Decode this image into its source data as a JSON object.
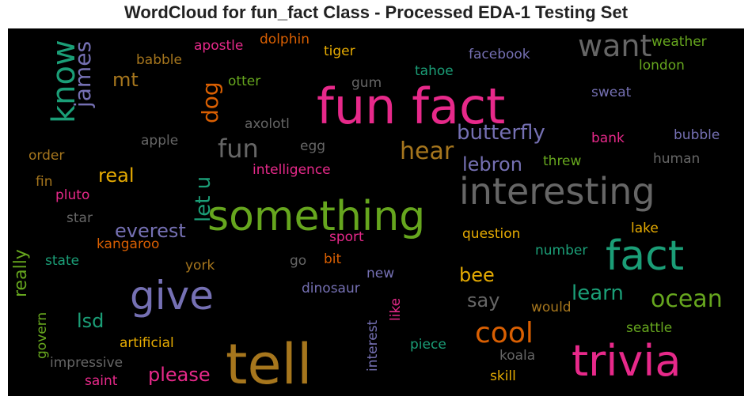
{
  "chart_data": {
    "type": "wordcloud",
    "title": "WordCloud for fun_fact Class - Processed EDA-1 Testing Set",
    "background": "#000000",
    "words": [
      {
        "text": "fun fact",
        "color": "#e7298a"
      },
      {
        "text": "tell",
        "color": "#a6761d"
      },
      {
        "text": "trivia",
        "color": "#e7298a"
      },
      {
        "text": "something",
        "color": "#66a61e"
      },
      {
        "text": "interesting",
        "color": "#666666"
      },
      {
        "text": "fact",
        "color": "#1b9e77"
      },
      {
        "text": "give",
        "color": "#7570b3"
      },
      {
        "text": "know",
        "color": "#1b9e77"
      },
      {
        "text": "want",
        "color": "#666666"
      },
      {
        "text": "cool",
        "color": "#d95f02"
      },
      {
        "text": "fun",
        "color": "#666666"
      },
      {
        "text": "ocean",
        "color": "#66a61e"
      },
      {
        "text": "james",
        "color": "#7570b3"
      },
      {
        "text": "hear",
        "color": "#a6761d"
      },
      {
        "text": "butterfly",
        "color": "#7570b3"
      },
      {
        "text": "dog",
        "color": "#d95f02"
      },
      {
        "text": "let u",
        "color": "#1b9e77"
      },
      {
        "text": "everest",
        "color": "#7570b3"
      },
      {
        "text": "please",
        "color": "#e7298a"
      },
      {
        "text": "learn",
        "color": "#1b9e77"
      },
      {
        "text": "lebron",
        "color": "#7570b3"
      },
      {
        "text": "real",
        "color": "#e6ab02"
      },
      {
        "text": "mt",
        "color": "#a6761d"
      },
      {
        "text": "bee",
        "color": "#e6ab02"
      },
      {
        "text": "say",
        "color": "#666666"
      },
      {
        "text": "lsd",
        "color": "#1b9e77"
      },
      {
        "text": "really",
        "color": "#66a61e"
      },
      {
        "text": "weather",
        "color": "#66a61e"
      },
      {
        "text": "london",
        "color": "#66a61e"
      },
      {
        "text": "facebook",
        "color": "#7570b3"
      },
      {
        "text": "tahoe",
        "color": "#1b9e77"
      },
      {
        "text": "sweat",
        "color": "#7570b3"
      },
      {
        "text": "dolphin",
        "color": "#d95f02"
      },
      {
        "text": "apostle",
        "color": "#e7298a"
      },
      {
        "text": "tiger",
        "color": "#e6ab02"
      },
      {
        "text": "babble",
        "color": "#a6761d"
      },
      {
        "text": "otter",
        "color": "#66a61e"
      },
      {
        "text": "gum",
        "color": "#666666"
      },
      {
        "text": "axolotl",
        "color": "#666666"
      },
      {
        "text": "bank",
        "color": "#e7298a"
      },
      {
        "text": "bubble",
        "color": "#7570b3"
      },
      {
        "text": "apple",
        "color": "#666666"
      },
      {
        "text": "egg",
        "color": "#666666"
      },
      {
        "text": "order",
        "color": "#a6761d"
      },
      {
        "text": "threw",
        "color": "#66a61e"
      },
      {
        "text": "human",
        "color": "#666666"
      },
      {
        "text": "intelligence",
        "color": "#e7298a"
      },
      {
        "text": "fin",
        "color": "#a6761d"
      },
      {
        "text": "pluto",
        "color": "#e7298a"
      },
      {
        "text": "star",
        "color": "#666666"
      },
      {
        "text": "lake",
        "color": "#e6ab02"
      },
      {
        "text": "question",
        "color": "#e6ab02"
      },
      {
        "text": "kangaroo",
        "color": "#d95f02"
      },
      {
        "text": "sport",
        "color": "#e7298a"
      },
      {
        "text": "state",
        "color": "#1b9e77"
      },
      {
        "text": "go",
        "color": "#666666"
      },
      {
        "text": "bit",
        "color": "#d95f02"
      },
      {
        "text": "number",
        "color": "#1b9e77"
      },
      {
        "text": "york",
        "color": "#a6761d"
      },
      {
        "text": "new",
        "color": "#7570b3"
      },
      {
        "text": "dinosaur",
        "color": "#7570b3"
      },
      {
        "text": "would",
        "color": "#a6761d"
      },
      {
        "text": "like",
        "color": "#e7298a"
      },
      {
        "text": "interest",
        "color": "#7570b3"
      },
      {
        "text": "govern",
        "color": "#66a61e"
      },
      {
        "text": "artificial",
        "color": "#e6ab02"
      },
      {
        "text": "seattle",
        "color": "#66a61e"
      },
      {
        "text": "piece",
        "color": "#1b9e77"
      },
      {
        "text": "koala",
        "color": "#666666"
      },
      {
        "text": "impressive",
        "color": "#666666"
      },
      {
        "text": "saint",
        "color": "#e7298a"
      },
      {
        "text": "skill",
        "color": "#e6ab02"
      }
    ]
  }
}
